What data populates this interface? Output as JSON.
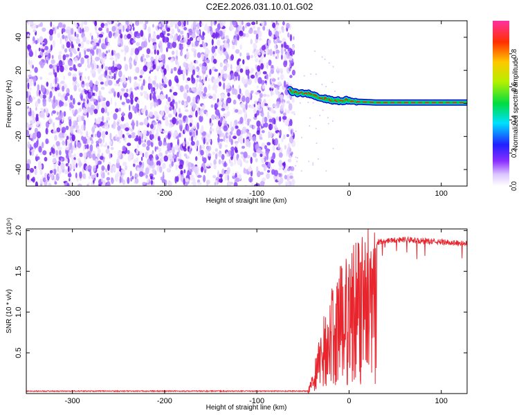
{
  "title": "C2E2.2026.031.10.01.G02",
  "chart_data": [
    {
      "type": "heatmap",
      "xlabel": "Height of straight line (km)",
      "ylabel": "Frequency (Hz)",
      "xlim": [
        -350,
        128
      ],
      "ylim": [
        -50,
        50
      ],
      "xticks": [
        -300,
        -200,
        -100,
        0,
        100
      ],
      "yticks": [
        -40,
        -20,
        0,
        20,
        40
      ],
      "noise_region_x": [
        -350,
        -60
      ],
      "ridge": {
        "x": [
          -65,
          -55,
          -45,
          -35,
          -28,
          -20,
          -10,
          0,
          10,
          30,
          60,
          90,
          128
        ],
        "freq": [
          8,
          6,
          6,
          4,
          3,
          2,
          1.5,
          2,
          1,
          0.5,
          0.5,
          0.5,
          0.5
        ]
      },
      "colorbar": {
        "label": "Normalized spectral amplitude",
        "ticks": [
          0.0,
          0.2,
          0.4,
          0.6,
          0.8
        ],
        "range": [
          0,
          1
        ]
      }
    },
    {
      "type": "line",
      "xlabel": "Height of straight line (km)",
      "ylabel": "SNR (10 * v/v)",
      "multiplier_label": "(x10⁴)",
      "xlim": [
        -350,
        128
      ],
      "ylim": [
        0,
        2.02
      ],
      "xticks": [
        -300,
        -200,
        -100,
        0,
        100
      ],
      "yticks": [
        0.5,
        1.0,
        1.5,
        2.0
      ],
      "line_color": "#e8242c",
      "profile": {
        "x": [
          -350,
          -45,
          -40,
          -30,
          -20,
          -10,
          0,
          10,
          20,
          30,
          40,
          60,
          80,
          100,
          128
        ],
        "y": [
          0.03,
          0.03,
          0.2,
          0.75,
          1.1,
          1.35,
          1.55,
          1.7,
          1.8,
          1.85,
          1.88,
          1.89,
          1.87,
          1.86,
          1.84
        ]
      }
    }
  ]
}
